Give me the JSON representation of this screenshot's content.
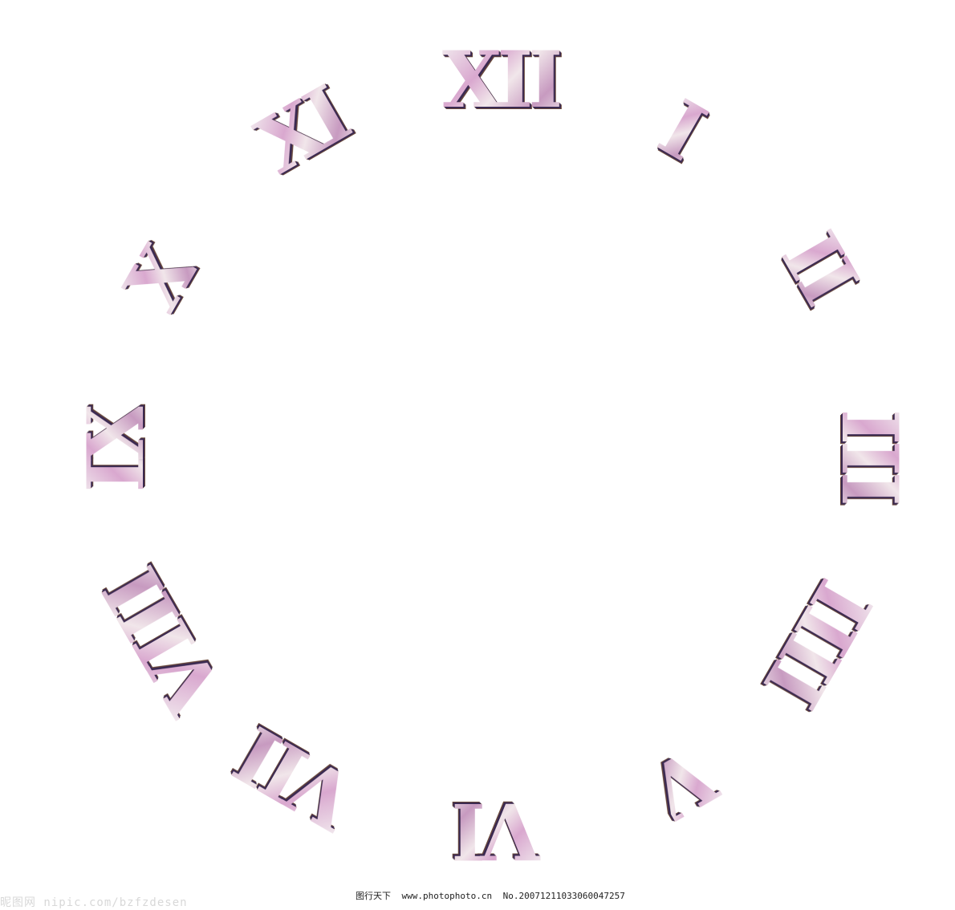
{
  "clock": {
    "numerals": [
      {
        "id": "xii",
        "text": "XII"
      },
      {
        "id": "i",
        "text": "I"
      },
      {
        "id": "ii",
        "text": "II"
      },
      {
        "id": "iii",
        "text": "III"
      },
      {
        "id": "iiii",
        "text": "IIII"
      },
      {
        "id": "v",
        "text": "V"
      },
      {
        "id": "vi",
        "text": "VI"
      },
      {
        "id": "vii",
        "text": "VII"
      },
      {
        "id": "viii",
        "text": "VIII"
      },
      {
        "id": "ix",
        "text": "IX"
      },
      {
        "id": "x",
        "text": "X"
      },
      {
        "id": "xi",
        "text": "XI"
      }
    ],
    "colors": {
      "face": "#ffffff",
      "numeral_light": "#f3eef0",
      "numeral_pink": "#d9a8cf",
      "numeral_shadow": "#3b2a52"
    }
  },
  "footer": {
    "left_watermark": "昵图网 nipic.com/bzfzdesen",
    "site_name": "图行天下",
    "site_url": "www.photophoto.cn",
    "image_number": "No.20071211033060047257"
  }
}
